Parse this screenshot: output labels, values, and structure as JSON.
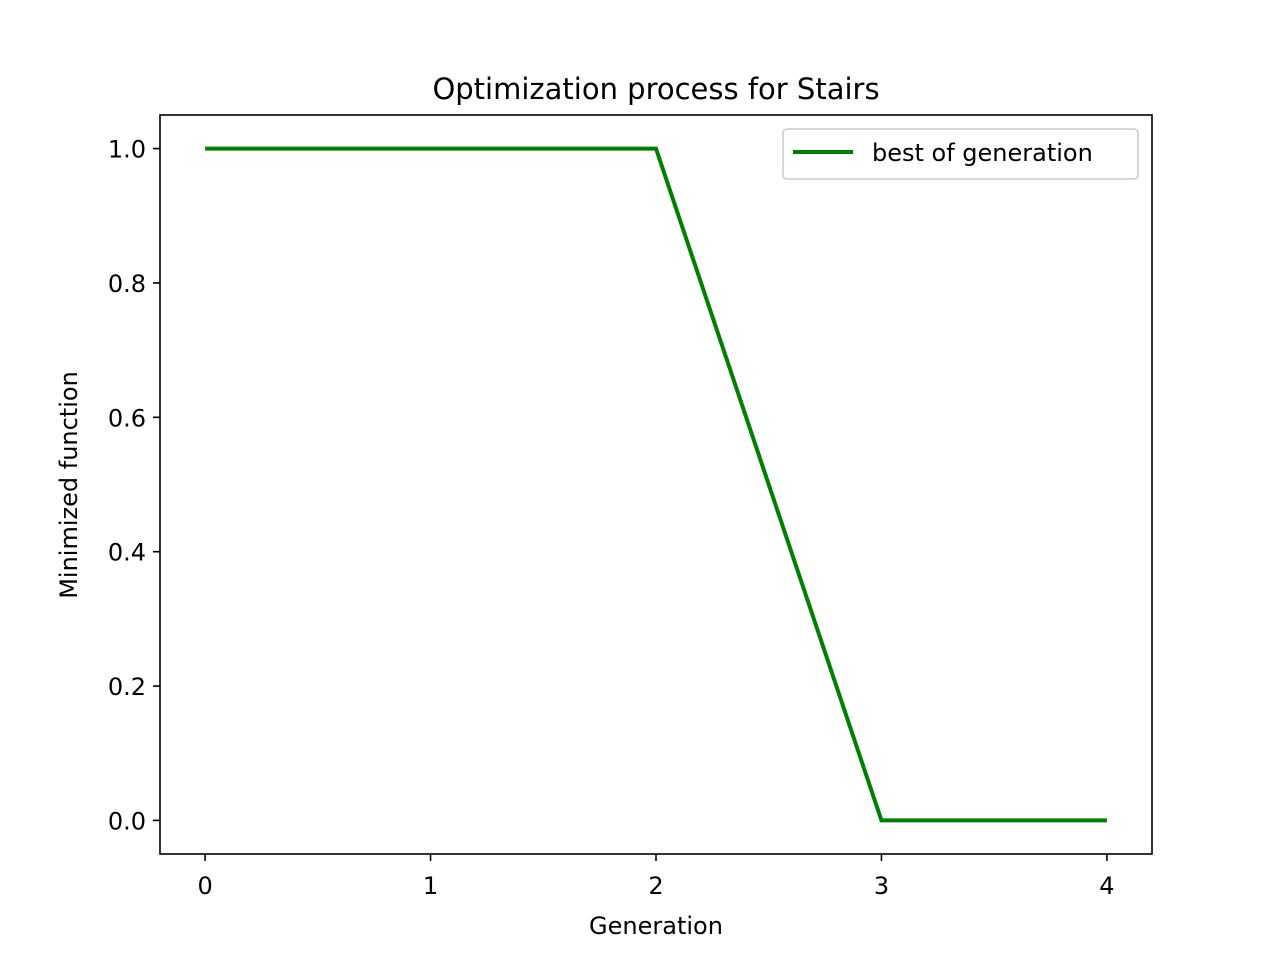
{
  "chart_data": {
    "type": "line",
    "title": "Optimization process for Stairs",
    "xlabel": "Generation",
    "ylabel": "Minimized function",
    "xlim": [
      -0.2,
      4.2
    ],
    "ylim": [
      -0.05,
      1.05
    ],
    "xticks": [
      0,
      1,
      2,
      3,
      4
    ],
    "xtick_labels": [
      "0",
      "1",
      "2",
      "3",
      "4"
    ],
    "yticks": [
      0.0,
      0.2,
      0.4,
      0.6,
      0.8,
      1.0
    ],
    "ytick_labels": [
      "0.0",
      "0.2",
      "0.4",
      "0.6",
      "0.8",
      "1.0"
    ],
    "grid": false,
    "legend_position": "top-right",
    "series": [
      {
        "name": "best of generation",
        "color": "#008000",
        "x": [
          0,
          1,
          2,
          3,
          4
        ],
        "y": [
          1.0,
          1.0,
          1.0,
          0.0,
          0.0
        ]
      }
    ]
  }
}
